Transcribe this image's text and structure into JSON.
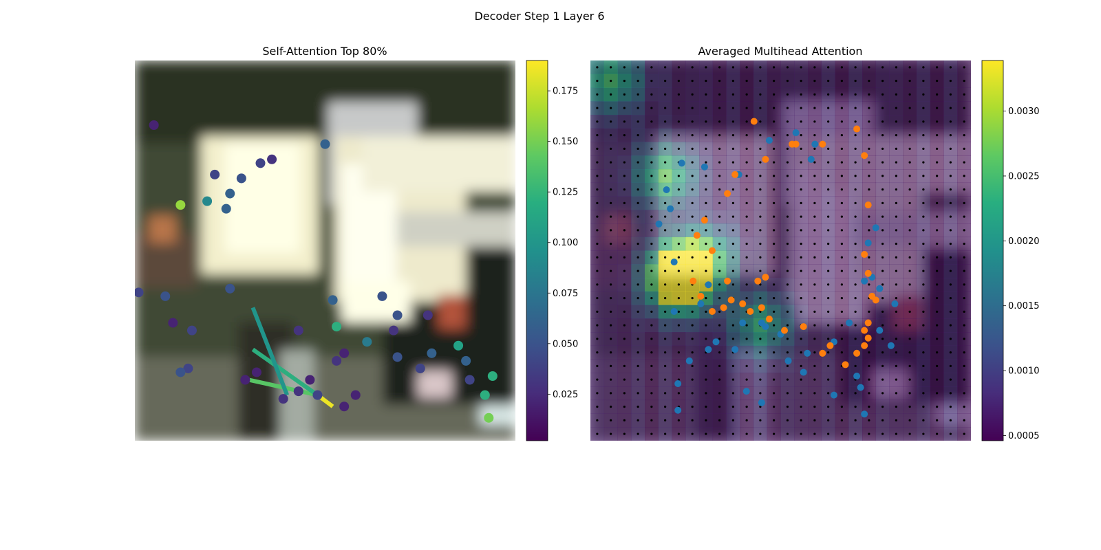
{
  "figure": {
    "title": "Decoder Step 1 Layer 6"
  },
  "chart_data": [
    {
      "type": "scatter",
      "title": "Self-Attention Top 80%",
      "xlabel": "",
      "ylabel": "",
      "background": "blurred street photo (image)",
      "colormap": "viridis",
      "colorbar": {
        "min": 0.002,
        "max": 0.19,
        "ticks": [
          "0.025",
          "0.050",
          "0.075",
          "0.100",
          "0.125",
          "0.150",
          "0.175"
        ]
      },
      "points": [
        [
          0.93,
          0.06,
          0.15
        ],
        [
          0.94,
          0.17,
          0.12
        ],
        [
          0.92,
          0.12,
          0.12
        ],
        [
          0.88,
          0.16,
          0.04
        ],
        [
          0.87,
          0.21,
          0.06
        ],
        [
          0.85,
          0.25,
          0.11
        ],
        [
          0.78,
          0.23,
          0.06
        ],
        [
          0.75,
          0.19,
          0.04
        ],
        [
          0.77,
          0.33,
          0.03
        ],
        [
          0.69,
          0.22,
          0.05
        ],
        [
          0.69,
          0.33,
          0.05
        ],
        [
          0.68,
          0.29,
          0.03
        ],
        [
          0.65,
          0.38,
          0.05
        ],
        [
          0.61,
          0.26,
          0.08
        ],
        [
          0.58,
          0.12,
          0.02
        ],
        [
          0.55,
          0.23,
          0.02
        ],
        [
          0.55,
          0.09,
          0.02
        ],
        [
          0.53,
          0.21,
          0.03
        ],
        [
          0.53,
          0.3,
          0.12
        ],
        [
          0.52,
          0.37,
          0.06
        ],
        [
          0.5,
          0.78,
          0.06
        ],
        [
          0.48,
          0.12,
          0.04
        ],
        [
          0.46,
          0.16,
          0.02
        ],
        [
          0.43,
          0.13,
          0.03
        ],
        [
          0.43,
          0.29,
          0.03
        ],
        [
          0.39,
          0.11,
          0.03
        ],
        [
          0.36,
          0.74,
          0.03
        ],
        [
          0.33,
          0.73,
          0.04
        ],
        [
          0.32,
          0.18,
          0.02
        ],
        [
          0.29,
          0.16,
          0.02
        ],
        [
          0.28,
          0.69,
          0.05
        ],
        [
          0.24,
          0.61,
          0.06
        ],
        [
          0.25,
          0.65,
          0.06
        ],
        [
          0.21,
          0.7,
          0.04
        ],
        [
          0.19,
          0.63,
          0.09
        ],
        [
          0.15,
          0.29,
          0.04
        ],
        [
          0.14,
          0.19,
          0.04
        ],
        [
          0.12,
          0.18,
          0.05
        ],
        [
          0.12,
          0.62,
          0.16
        ],
        [
          0.1,
          0.31,
          0.02
        ],
        [
          0.08,
          0.38,
          0.05
        ],
        [
          0.05,
          0.83,
          0.02
        ],
        [
          0.01,
          0.39,
          0.04
        ],
        [
          0.25,
          0.4,
          0.05
        ]
      ],
      "lines": [
        {
          "x": [
            0.3,
            0.48
          ],
          "y": [
            0.16,
            0.12
          ],
          "value": 0.14
        },
        {
          "x": [
            0.31,
            0.48
          ],
          "y": [
            0.24,
            0.12
          ],
          "value": 0.12
        },
        {
          "x": [
            0.31,
            0.4
          ],
          "y": [
            0.35,
            0.12
          ],
          "value": 0.1
        },
        {
          "x": [
            0.48,
            0.52
          ],
          "y": [
            0.12,
            0.09
          ],
          "value": 0.185
        }
      ]
    },
    {
      "type": "heatmap",
      "title": "Averaged Multihead Attention",
      "xlabel": "",
      "ylabel": "",
      "background": "blurred street photo (image)",
      "colormap": "viridis",
      "grid": {
        "rows": 28,
        "cols": 28
      },
      "colorbar": {
        "min": 0.00046,
        "max": 0.00339,
        "ticks": [
          "0.0005",
          "0.0010",
          "0.0015",
          "0.0020",
          "0.0025",
          "0.0030"
        ]
      },
      "attention_peaks": [
        {
          "row": 16,
          "col": 6,
          "value": 0.0033
        },
        {
          "row": 15,
          "col": 6,
          "value": 0.0031
        },
        {
          "row": 1,
          "col": 1,
          "value": 0.0026
        },
        {
          "row": 8,
          "col": 5,
          "value": 0.0027
        },
        {
          "row": 14,
          "col": 8,
          "value": 0.0025
        },
        {
          "row": 19,
          "col": 12,
          "value": 0.0024
        }
      ],
      "series": [
        {
          "name": "",
          "color": "#1f77b4",
          "x": [
            0.54,
            0.47,
            0.59,
            0.58,
            0.3,
            0.39,
            0.24,
            0.2,
            0.18,
            0.21,
            0.22,
            0.31,
            0.29,
            0.4,
            0.46,
            0.33,
            0.38,
            0.26,
            0.23,
            0.22,
            0.41,
            0.45,
            0.52,
            0.57,
            0.64,
            0.68,
            0.72,
            0.73,
            0.75,
            0.74,
            0.76,
            0.8,
            0.79,
            0.7,
            0.71,
            0.76,
            0.72,
            0.64,
            0.56,
            0.5,
            0.31,
            0.23,
            0.45
          ],
          "y": [
            0.81,
            0.79,
            0.78,
            0.74,
            0.72,
            0.7,
            0.73,
            0.66,
            0.57,
            0.61,
            0.47,
            0.41,
            0.36,
            0.31,
            0.3,
            0.26,
            0.24,
            0.21,
            0.15,
            0.34,
            0.13,
            0.1,
            0.21,
            0.23,
            0.26,
            0.31,
            0.42,
            0.52,
            0.56,
            0.43,
            0.4,
            0.36,
            0.25,
            0.17,
            0.14,
            0.29,
            0.07,
            0.12,
            0.18,
            0.28,
            0.24,
            0.08,
            0.31
          ]
        },
        {
          "name": "",
          "color": "#ff7f0e",
          "x": [
            0.54,
            0.53,
            0.61,
            0.46,
            0.38,
            0.36,
            0.28,
            0.27,
            0.29,
            0.32,
            0.35,
            0.37,
            0.4,
            0.42,
            0.44,
            0.47,
            0.45,
            0.46,
            0.3,
            0.32,
            0.36,
            0.51,
            0.56,
            0.61,
            0.7,
            0.72,
            0.73,
            0.72,
            0.73,
            0.74,
            0.75,
            0.73,
            0.72,
            0.73,
            0.72,
            0.7,
            0.67,
            0.63,
            0.43
          ],
          "y": [
            0.78,
            0.78,
            0.78,
            0.74,
            0.7,
            0.65,
            0.54,
            0.42,
            0.38,
            0.34,
            0.35,
            0.37,
            0.36,
            0.34,
            0.42,
            0.32,
            0.35,
            0.43,
            0.58,
            0.5,
            0.42,
            0.29,
            0.3,
            0.23,
            0.82,
            0.75,
            0.62,
            0.49,
            0.44,
            0.38,
            0.37,
            0.31,
            0.29,
            0.27,
            0.25,
            0.23,
            0.2,
            0.25,
            0.84
          ]
        }
      ]
    }
  ]
}
